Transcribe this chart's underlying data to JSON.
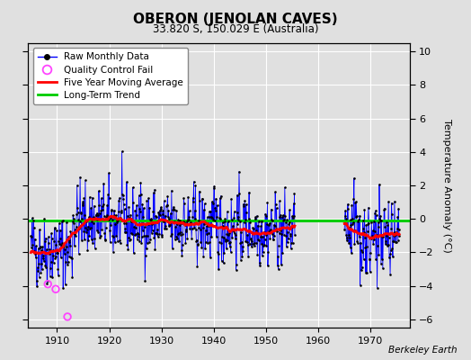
{
  "title": "OBERON (JENOLAN CAVES)",
  "subtitle": "33.820 S, 150.029 E (Australia)",
  "ylabel": "Temperature Anomaly (°C)",
  "attribution": "Berkeley Earth",
  "ylim": [
    -6.5,
    10.5
  ],
  "yticks": [
    -6,
    -4,
    -2,
    0,
    2,
    4,
    6,
    8,
    10
  ],
  "xlim": [
    1904.5,
    1977.5
  ],
  "xticks": [
    1910,
    1920,
    1930,
    1940,
    1950,
    1960,
    1970
  ],
  "line_color": "#0000ff",
  "marker_color": "#000000",
  "moving_avg_color": "#ff0000",
  "trend_color": "#00cc00",
  "qc_fail_color": "#ff44ff",
  "background_color": "#e0e0e0",
  "grid_color": "#ffffff",
  "seed": 42
}
